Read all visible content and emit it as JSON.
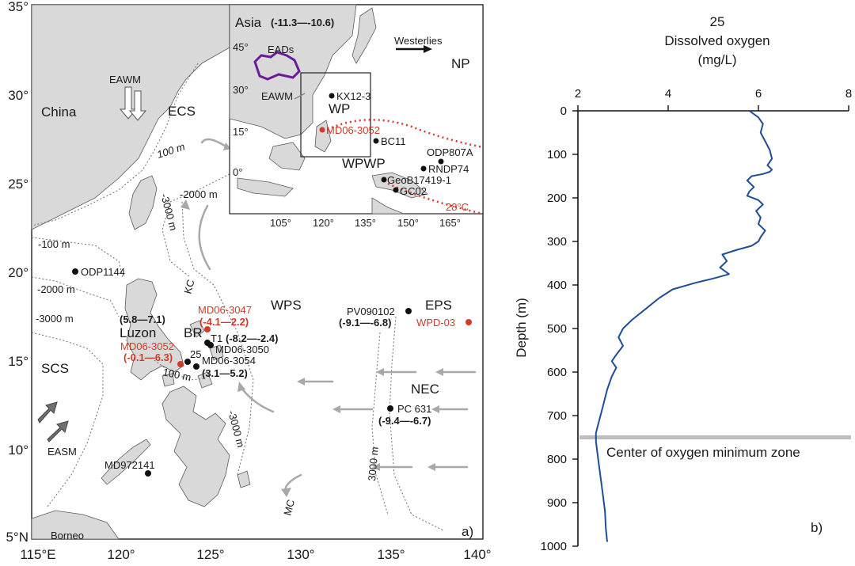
{
  "map": {
    "lat_ticks": [
      "35°",
      "30°",
      "25°",
      "20°",
      "15°",
      "10°",
      "5°N"
    ],
    "lon_ticks": [
      "115°E",
      "120°",
      "125°",
      "130°",
      "135°",
      "140°"
    ],
    "panel_label": "a)",
    "regions": {
      "china": "China",
      "ecs": "ECS",
      "scs": "SCS",
      "luzon": "Luzon",
      "borneo": "Borneo",
      "wps": "WPS",
      "eps": "EPS",
      "nec": "NEC",
      "br": "BR",
      "eawm": "EAWM",
      "easm": "EASM",
      "kc": "KC",
      "mc": "MC"
    },
    "contours": {
      "c100_ecs": "100 m",
      "c2000_tw": "-2000 m",
      "c3000_tw": "-3000 m",
      "c100_scs": "-100 m",
      "c2000_scs": "-2000 m",
      "c3000_scs": "-3000 m",
      "c100_luzon": "100 m",
      "c3000_ph": "-3000 m",
      "c3000_east": "3000 m"
    },
    "sites": {
      "odp1144": "ODP1144",
      "md06_3047": "MD06-3047",
      "md06_3047_range": "(-4.1—2.2)",
      "t1": "T1",
      "t1_range": "(-8.2—-2.4)",
      "md06_3050": "MD06-3050",
      "md06_3052": "MD06-3052",
      "md06_3052_range": "(-0.1—6.3)",
      "luzon_range": "(5.8—7.1)",
      "md06_3054_a": "25",
      "md06_3054": "MD06-3054",
      "md06_3054_range": "(3.1—5.2)",
      "pv090102": "PV090102",
      "pv_range": "(-9.1—-6.8)",
      "wpd03": "WPD-03",
      "pc631": "PC 631",
      "pc631_range": "(-9.4—-6.7)",
      "md972141": "MD972141"
    },
    "colors": {
      "land": "#d9d9d9",
      "red_site": "#d43a2a",
      "arrow": "#a8a8a8",
      "ead": "#6a1b9a"
    }
  },
  "inset": {
    "asia": "Asia",
    "asia_range": "(-11.3—-10.6)",
    "eads": "EADs",
    "westerlies": "Westerlies",
    "np": "NP",
    "eawm": "EAWM",
    "wp": "WP",
    "wpwp": "WPWP",
    "isotherm": "28°C",
    "lat_ticks": [
      "45°",
      "30°",
      "15°",
      "0°"
    ],
    "lon_ticks": [
      "105°",
      "120°",
      "135°",
      "150°",
      "165°"
    ],
    "sites": {
      "kx12": "KX12-3",
      "md06_3052": "MD06-3052",
      "bc11": "BC11",
      "odp807a": "ODP807A",
      "rndp74": "RNDP74",
      "geob": "GeoB17419-1",
      "gc02": "GC02"
    }
  },
  "profile": {
    "top_label": "25",
    "title": "Dissolved oxygen",
    "unit": "(mg/L)",
    "ylabel": "Depth (m)",
    "panel_label": "b)",
    "omz_label": "Center of oxygen minimum zone",
    "omz_depth": 750
  },
  "chart_data": {
    "type": "line",
    "title": "Dissolved oxygen",
    "xlabel": "(mg/L)",
    "ylabel": "Depth (m)",
    "xlim": [
      2,
      8
    ],
    "ylim": [
      0,
      1000
    ],
    "y_inverted": true,
    "x_ticks": [
      2,
      4,
      6,
      8
    ],
    "y_ticks": [
      0,
      100,
      200,
      300,
      400,
      500,
      600,
      700,
      800,
      900,
      1000
    ],
    "series": [
      {
        "x": [
          5.8,
          6.0,
          6.1,
          6.05,
          6.15,
          6.25,
          6.3,
          6.2,
          6.3,
          6.25,
          6.1,
          5.85,
          5.75,
          5.9,
          5.8,
          5.75,
          6.0,
          6.1,
          5.95,
          6.05,
          6.0,
          6.15,
          6.05,
          6.0,
          5.85,
          5.5,
          5.2,
          5.3,
          5.15,
          5.35,
          5.0,
          4.6,
          4.1,
          3.8,
          3.5,
          3.2,
          3.0,
          2.9,
          3.0,
          2.85,
          2.75,
          2.85,
          2.8,
          2.75,
          2.65,
          2.6,
          2.55,
          2.5,
          2.45,
          2.4,
          2.4,
          2.45,
          2.5,
          2.55,
          2.6,
          2.62,
          2.65
        ],
        "y": [
          0,
          15,
          30,
          50,
          70,
          90,
          110,
          125,
          135,
          140,
          145,
          150,
          160,
          175,
          185,
          195,
          205,
          215,
          230,
          245,
          260,
          275,
          290,
          300,
          310,
          320,
          330,
          345,
          360,
          375,
          385,
          395,
          410,
          430,
          455,
          480,
          500,
          520,
          540,
          560,
          575,
          590,
          600,
          610,
          640,
          660,
          680,
          700,
          720,
          740,
          760,
          800,
          840,
          880,
          920,
          960,
          990
        ]
      }
    ],
    "annotations": [
      "Center of oxygen minimum zone"
    ]
  }
}
